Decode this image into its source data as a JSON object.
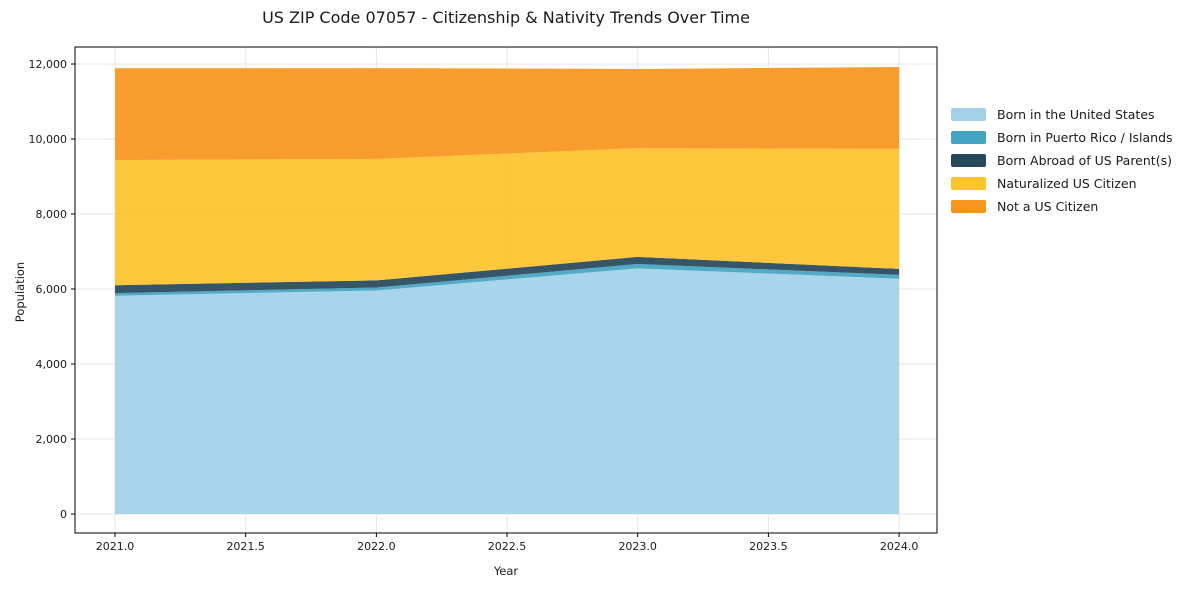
{
  "page": {
    "background": "#ffffff"
  },
  "chart_data": {
    "type": "area",
    "stacked": true,
    "title": "US ZIP Code 07057 - Citizenship & Nativity Trends Over Time",
    "xlabel": "Year",
    "ylabel": "Population",
    "x": [
      2021,
      2022,
      2023,
      2024
    ],
    "series": [
      {
        "name": "Born in the United States",
        "color": "#A3D2E8",
        "values": [
          5820,
          5960,
          6550,
          6275
        ]
      },
      {
        "name": "Born in Puerto Rico / Islands",
        "color": "#44A5C2",
        "values": [
          70,
          80,
          115,
          100
        ]
      },
      {
        "name": "Born Abroad of US Parent(s)",
        "color": "#27495C",
        "values": [
          210,
          190,
          190,
          160
        ]
      },
      {
        "name": "Naturalized US Citizen",
        "color": "#FCC32D",
        "values": [
          3340,
          3240,
          2900,
          3200
        ]
      },
      {
        "name": "Not a US Citizen",
        "color": "#F7941E",
        "values": [
          2445,
          2420,
          2110,
          2185
        ]
      }
    ],
    "stack_totals": [
      11885,
      11890,
      11865,
      11920
    ],
    "xlim": [
      2020.847,
      2024.145
    ],
    "ylim": [
      -507,
      12453
    ],
    "xticks": [
      {
        "value": 2021.0,
        "label": "2021.0"
      },
      {
        "value": 2021.5,
        "label": "2021.5"
      },
      {
        "value": 2022.0,
        "label": "2022.0"
      },
      {
        "value": 2022.5,
        "label": "2022.5"
      },
      {
        "value": 2023.0,
        "label": "2023.0"
      },
      {
        "value": 2023.5,
        "label": "2023.5"
      },
      {
        "value": 2024.0,
        "label": "2024.0"
      }
    ],
    "yticks": [
      {
        "value": 0,
        "label": "0"
      },
      {
        "value": 2000,
        "label": "2,000"
      },
      {
        "value": 4000,
        "label": "4,000"
      },
      {
        "value": 6000,
        "label": "6,000"
      },
      {
        "value": 8000,
        "label": "8,000"
      },
      {
        "value": 10000,
        "label": "10,000"
      },
      {
        "value": 12000,
        "label": "12,000"
      }
    ],
    "grid": true,
    "legend_position": "right-outside",
    "axis_color": "#000000",
    "grid_color": "#e6e6e6",
    "fill_opacity": 0.93
  }
}
